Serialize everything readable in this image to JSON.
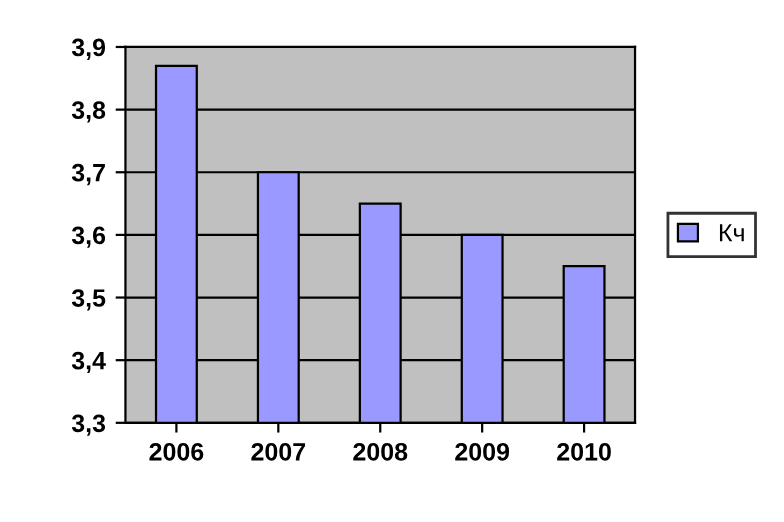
{
  "chart_data": {
    "type": "bar",
    "categories": [
      "2006",
      "2007",
      "2008",
      "2009",
      "2010"
    ],
    "series": [
      {
        "name": "Кч",
        "color": "#9999ff",
        "values": [
          3.87,
          3.7,
          3.65,
          3.6,
          3.55
        ]
      }
    ],
    "ylim": [
      3.3,
      3.9
    ],
    "yticks": [
      {
        "value": 3.3,
        "label": "3,3"
      },
      {
        "value": 3.4,
        "label": "3,4"
      },
      {
        "value": 3.5,
        "label": "3,5"
      },
      {
        "value": 3.6,
        "label": "3,6"
      },
      {
        "value": 3.7,
        "label": "3,7"
      },
      {
        "value": 3.8,
        "label": "3,8"
      },
      {
        "value": 3.9,
        "label": "3,9"
      }
    ],
    "grid": "y",
    "legend": "right"
  }
}
